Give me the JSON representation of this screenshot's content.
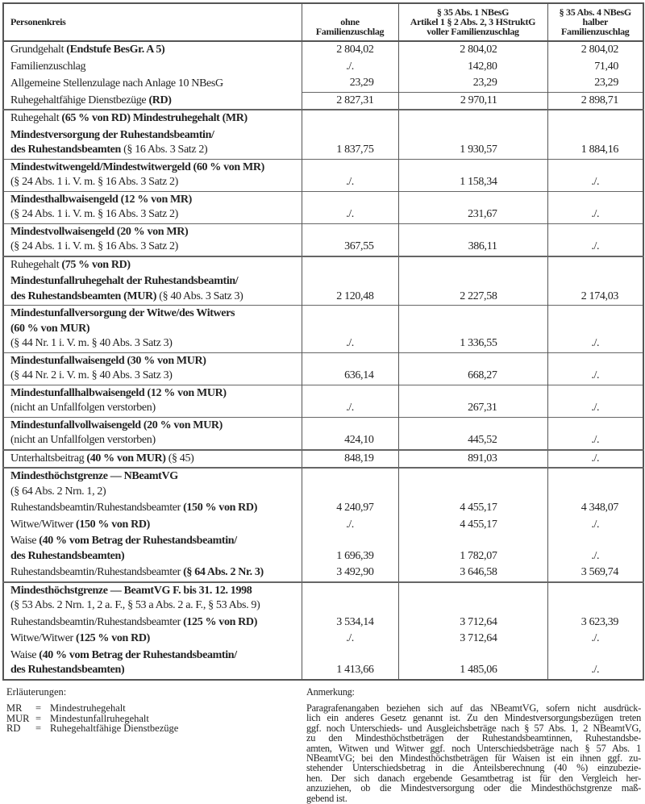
{
  "table": {
    "headers": [
      "Personenkreis",
      [
        "ohne",
        "Familienzuschlag"
      ],
      [
        "§ 35 Abs. 1 NBesG",
        "Artikel 1 § 2 Abs. 2, 3 HStruktG",
        "voller Familienzuschlag"
      ],
      [
        "§ 35 Abs. 4 NBesG",
        "halber",
        "Familienzuschlag"
      ]
    ],
    "rows": [
      {
        "top": "thick",
        "lines": [
          [
            {
              "t": "Grundgehalt "
            },
            {
              "t": "(Endstufe BesGr. A 5)",
              "b": true
            }
          ]
        ],
        "v": [
          "2 804,02",
          "2 804,02",
          "2 804,02"
        ]
      },
      {
        "top": "none",
        "lines": [
          [
            {
              "t": "Familienzuschlag"
            }
          ]
        ],
        "v": [
          "./.",
          "142,80",
          "71,40"
        ]
      },
      {
        "top": "none",
        "lines": [
          [
            {
              "t": "Allgemeine Stellenzulage nach Anlage 10 NBesG"
            }
          ]
        ],
        "v": [
          "23,29",
          "23,29",
          "23,29"
        ]
      },
      {
        "top": "vals",
        "lines": [
          [
            {
              "t": "Ruhegehaltfähige Dienstbezüge "
            },
            {
              "t": "(RD)",
              "b": true
            }
          ]
        ],
        "v": [
          "2 827,31",
          "2 970,11",
          "2 898,71"
        ]
      },
      {
        "top": "thick",
        "lines": [
          [
            {
              "t": "Ruhegehalt "
            },
            {
              "t": "(65 % von RD) Mindestruhegehalt (MR)",
              "b": true
            }
          ]
        ],
        "v": [
          "",
          "",
          ""
        ]
      },
      {
        "top": "none",
        "lines": [
          [
            {
              "t": "Mindestversorgung der Ruhestandsbeamtin/",
              "b": true
            }
          ],
          [
            {
              "t": "des Ruhestandsbeamten",
              "b": true
            },
            {
              "t": " (§ 16 Abs. 3 Satz 2)"
            }
          ]
        ],
        "v": [
          "1 837,75",
          "1 930,57",
          "1 884,16"
        ]
      },
      {
        "top": "thin",
        "lines": [
          [
            {
              "t": "Mindestwitwengeld/Mindestwitwergeld (60 % von MR)",
              "b": true
            }
          ],
          [
            {
              "t": "(§ 24 Abs. 1 i. V. m. § 16 Abs. 3 Satz 2)"
            }
          ]
        ],
        "v": [
          "./.",
          "1 158,34",
          "./."
        ]
      },
      {
        "top": "thin",
        "lines": [
          [
            {
              "t": "Mindesthalbwaisengeld (12 % von MR)",
              "b": true
            }
          ],
          [
            {
              "t": "(§ 24 Abs. 1 i. V. m. § 16 Abs. 3 Satz 2)"
            }
          ]
        ],
        "v": [
          "./.",
          "231,67",
          "./."
        ]
      },
      {
        "top": "thin",
        "lines": [
          [
            {
              "t": "Mindestvollwaisengeld (20 % von MR)",
              "b": true
            }
          ],
          [
            {
              "t": "(§ 24 Abs. 1 i. V. m. § 16 Abs. 3 Satz 2)"
            }
          ]
        ],
        "v": [
          "367,55",
          "386,11",
          "./."
        ]
      },
      {
        "top": "thick",
        "lines": [
          [
            {
              "t": "Ruhegehalt "
            },
            {
              "t": "(75 % von RD)",
              "b": true
            }
          ]
        ],
        "v": [
          "",
          "",
          ""
        ]
      },
      {
        "top": "none",
        "lines": [
          [
            {
              "t": "Mindestunfallruhegehalt der Ruhestandsbeamtin/",
              "b": true
            }
          ],
          [
            {
              "t": "des Ruhestandsbeamten (MUR)",
              "b": true
            },
            {
              "t": " (§ 40 Abs. 3 Satz 3)"
            }
          ]
        ],
        "v": [
          "2 120,48",
          "2 227,58",
          "2 174,03"
        ]
      },
      {
        "top": "thin",
        "lines": [
          [
            {
              "t": "Mindestunfallversorgung der Witwe/des Witwers",
              "b": true
            }
          ],
          [
            {
              "t": "(60 % von MUR)",
              "b": true
            }
          ],
          [
            {
              "t": "(§ 44 Nr. 1 i. V. m. § 40 Abs. 3 Satz 3)"
            }
          ]
        ],
        "v": [
          "./.",
          "1 336,55",
          "./."
        ]
      },
      {
        "top": "thin",
        "lines": [
          [
            {
              "t": "Mindestunfallwaisengeld (30 % von MUR)",
              "b": true
            }
          ],
          [
            {
              "t": "(§ 44 Nr. 2 i. V. m. § 40 Abs. 3 Satz 3)"
            }
          ]
        ],
        "v": [
          "636,14",
          "668,27",
          "./."
        ]
      },
      {
        "top": "thin",
        "lines": [
          [
            {
              "t": "Mindestunfallhalbwaisengeld (12 % von MUR)",
              "b": true
            }
          ],
          [
            {
              "t": "(nicht an Unfallfolgen verstorben)"
            }
          ]
        ],
        "v": [
          "./.",
          "267,31",
          "./."
        ]
      },
      {
        "top": "thin",
        "lines": [
          [
            {
              "t": "Mindestunfallvollwaisengeld (20 % von MUR)",
              "b": true
            }
          ],
          [
            {
              "t": "(nicht an Unfallfolgen verstorben)"
            }
          ]
        ],
        "v": [
          "424,10",
          "445,52",
          "./."
        ]
      },
      {
        "top": "thick",
        "lines": [
          [
            {
              "t": "Unterhaltsbeitrag "
            },
            {
              "t": "(40 % von MUR)",
              "b": true
            },
            {
              "t": " (§ 45)"
            }
          ]
        ],
        "v": [
          "848,19",
          "891,03",
          "./."
        ]
      },
      {
        "top": "thick",
        "lines": [
          [
            {
              "t": "Mindesthöchstgrenze — NBeamtVG",
              "b": true
            }
          ],
          [
            {
              "t": "(§ 64 Abs. 2 Nrn. 1, 2)"
            }
          ]
        ],
        "v": [
          "",
          "",
          ""
        ]
      },
      {
        "top": "none",
        "lines": [
          [
            {
              "t": "Ruhestandsbeamtin/Ruhestandsbeamter "
            },
            {
              "t": "(150 % von RD)",
              "b": true
            }
          ]
        ],
        "v": [
          "4 240,97",
          "4 455,17",
          "4 348,07"
        ]
      },
      {
        "top": "none",
        "lines": [
          [
            {
              "t": "Witwe/Witwer "
            },
            {
              "t": "(150 % von RD)",
              "b": true
            }
          ]
        ],
        "v": [
          "./.",
          "4 455,17",
          "./."
        ]
      },
      {
        "top": "none",
        "lines": [
          [
            {
              "t": "Waise "
            },
            {
              "t": "(40 % vom Betrag der Ruhestandsbeamtin/",
              "b": true
            }
          ],
          [
            {
              "t": "des Ruhestandsbeamten)",
              "b": true
            }
          ]
        ],
        "v": [
          "1 696,39",
          "1 782,07",
          "./."
        ]
      },
      {
        "top": "none",
        "lines": [
          [
            {
              "t": "Ruhestandsbeamtin/Ruhestandsbeamter "
            },
            {
              "t": "(§ 64 Abs. 2 Nr. 3)",
              "b": true
            }
          ]
        ],
        "v": [
          "3 492,90",
          "3 646,58",
          "3 569,74"
        ]
      },
      {
        "top": "thick",
        "lines": [
          [
            {
              "t": "Mindesthöchstgrenze — BeamtVG F. bis 31. 12. 1998",
              "b": true
            }
          ],
          [
            {
              "t": "(§ 53 Abs. 2 Nrn. 1, 2 a. F., § 53 a Abs. 2 a. F., § 53 Abs. 9)"
            }
          ]
        ],
        "v": [
          "",
          "",
          ""
        ]
      },
      {
        "top": "none",
        "lines": [
          [
            {
              "t": "Ruhestandsbeamtin/Ruhestandsbeamter "
            },
            {
              "t": "(125 % von RD)",
              "b": true
            }
          ]
        ],
        "v": [
          "3 534,14",
          "3 712,64",
          "3 623,39"
        ]
      },
      {
        "top": "none",
        "lines": [
          [
            {
              "t": "Witwe/Witwer "
            },
            {
              "t": "(125 % von RD)",
              "b": true
            }
          ]
        ],
        "v": [
          "./.",
          "3 712,64",
          "./."
        ]
      },
      {
        "top": "none",
        "lines": [
          [
            {
              "t": "Waise "
            },
            {
              "t": "(40 % vom Betrag der Ruhestandsbeamtin/",
              "b": true
            }
          ],
          [
            {
              "t": "des Ruhestandsbeamten)",
              "b": true
            }
          ]
        ],
        "v": [
          "1 413,66",
          "1 485,06",
          "./."
        ]
      }
    ]
  },
  "legend": {
    "title": "Erläuterungen:",
    "items": [
      {
        "abbr": "MR",
        "eq": "=",
        "text": "Mindestruhegehalt"
      },
      {
        "abbr": "MUR",
        "eq": "=",
        "text": "Mindestunfallruhegehalt"
      },
      {
        "abbr": "RD",
        "eq": "=",
        "text": "Ruhegehaltfähige Dienstbezüge"
      }
    ]
  },
  "note": {
    "title": "Anmerkung:",
    "lines": [
      "Paragrafenangaben beziehen sich auf das NBeamtVG, sofern nicht ausdrück-",
      "lich ein anderes Gesetz genannt ist. Zu den Mindestversorgungsbezügen treten",
      "ggf. noch Unterschieds- und Ausgleichsbeträge nach § 57 Abs. 1, 2 NBeamtVG,",
      "zu den Mindesthöchstbeträgen der Ruhestandsbeamtinnen, Ruhestandsbe-",
      "amten, Witwen und Witwer ggf. noch Unterschiedsbeträge nach § 57 Abs. 1",
      "NBeamtVG; bei den Mindesthöchstbeträgen für Waisen ist ein ihnen ggf. zu-",
      "stehender Unterschiedsbetrag in die Anteilsberechnung (40 %) einzubezie-",
      "hen. Der sich danach ergebende Gesamtbetrag ist für den Vergleich her-",
      "anzuziehen, ob die Mindestversorgung oder die Mindesthöchstgrenze maß-",
      "gebend ist."
    ]
  }
}
